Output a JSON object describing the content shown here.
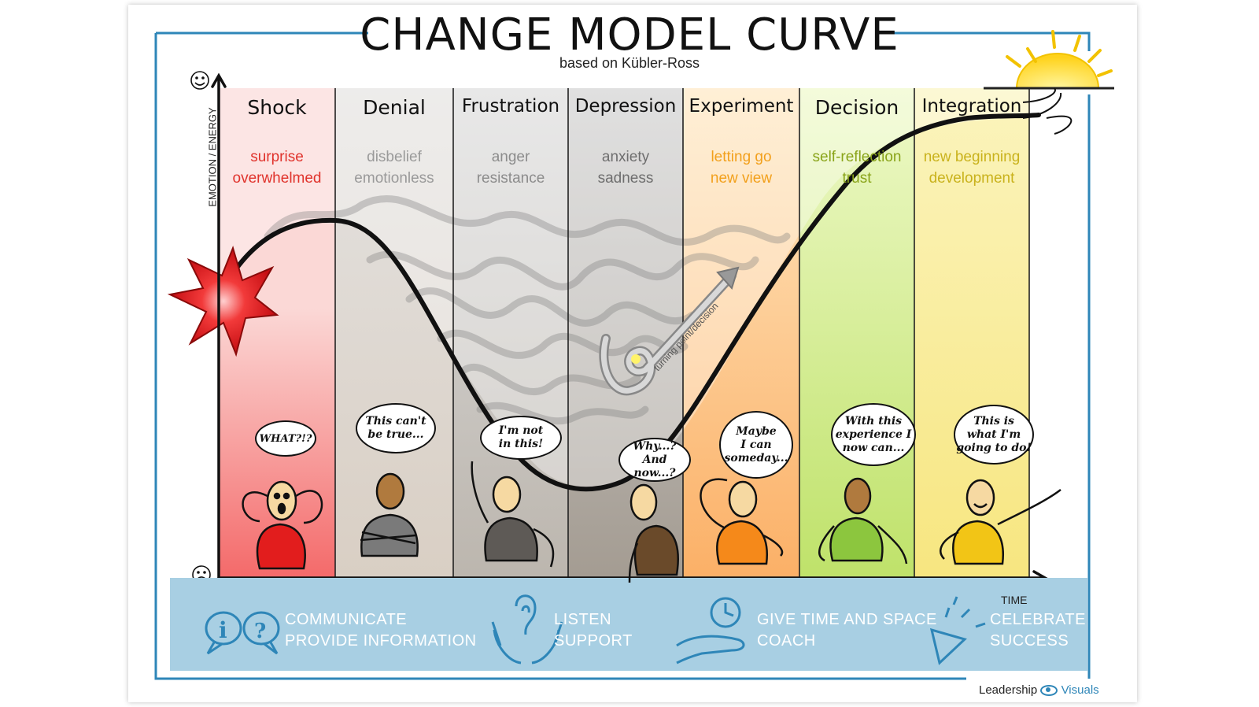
{
  "title": "CHANGE MODEL CURVE",
  "subtitle": "based on Kübler-Ross",
  "axes": {
    "y_label": "EMOTION / ENERGY",
    "x_label": "TIME"
  },
  "stages": [
    {
      "name": "Shock",
      "line1": "surprise",
      "line2": "overwhelmed",
      "bg_top": "#fbd8d6",
      "bg_bottom": "#f46a6a",
      "text_color": "#e0332c"
    },
    {
      "name": "Denial",
      "line1": "disbelief",
      "line2": "emotionless",
      "bg_top": "#e4e2e0",
      "bg_bottom": "#d9cfc4",
      "text_color": "#9a9a9a"
    },
    {
      "name": "Frustration",
      "line1": "anger",
      "line2": "resistance",
      "bg_top": "#dcdcdc",
      "bg_bottom": "#bcb6ae",
      "text_color": "#8c8c8c"
    },
    {
      "name": "Depression",
      "line1": "anxiety",
      "line2": "sadness",
      "bg_top": "#cfcfcf",
      "bg_bottom": "#a49c92",
      "text_color": "#6e6e6e"
    },
    {
      "name": "Experiment",
      "line1": "letting go",
      "line2": "new view",
      "bg_top": "#ffe7c0",
      "bg_bottom": "#fbb067",
      "text_color": "#f2a01c"
    },
    {
      "name": "Decision",
      "line1": "self-reflection",
      "line2": "trust",
      "bg_top": "#eef9c8",
      "bg_bottom": "#bfe26a",
      "text_color": "#8aa41a"
    },
    {
      "name": "Integration",
      "line1": "new beginning",
      "line2": "development",
      "bg_top": "#fbf4bd",
      "bg_bottom": "#f7e680",
      "text_color": "#c9b21c"
    }
  ],
  "speech": [
    "WHAT?!?",
    "This can't\nbe true...",
    "I'm not\nin this!",
    "Why...?\nAnd now...?",
    "Maybe\nI can\nsomeday...",
    "With this\nexperience I\nnow can...",
    "This is\nwhat I'm\ngoing to do!"
  ],
  "turning_point": "turning point/decision",
  "actions": [
    {
      "line1": "COMMUNICATE",
      "line2": "PROVIDE INFORMATION",
      "icon": "info-question-bubbles-icon"
    },
    {
      "line1": "LISTEN",
      "line2": "SUPPORT",
      "icon": "ear-hands-icon"
    },
    {
      "line1": "GIVE TIME AND SPACE",
      "line2": "COACH",
      "icon": "clock-hand-icon"
    },
    {
      "line1": "CELEBRATE",
      "line2": "SUCCESS",
      "icon": "party-popper-icon"
    }
  ],
  "brand": {
    "part1": "Leadership",
    "part2": "Visuals"
  },
  "colors": {
    "frame": "#2e86b8",
    "action_band": "#a8cfe3",
    "curve": "#111111"
  }
}
